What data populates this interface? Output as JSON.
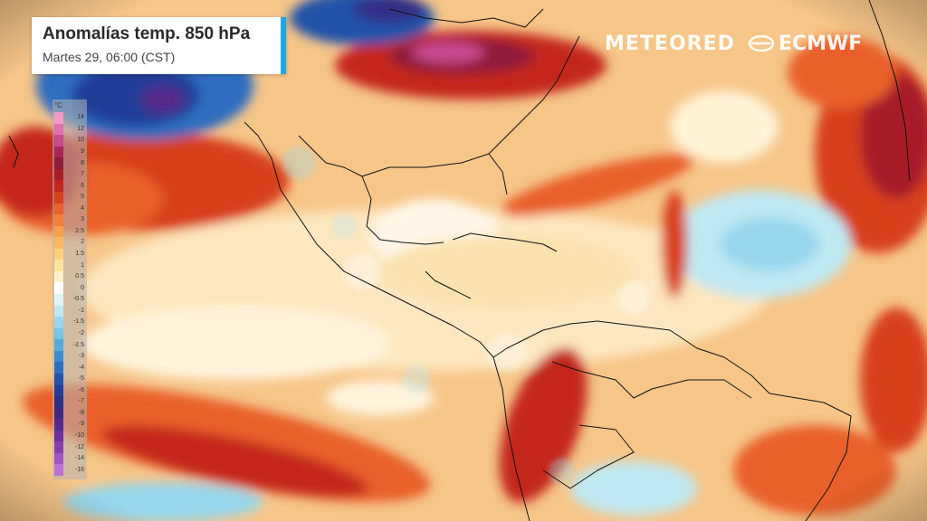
{
  "title": "Anomalías temp. 850 hPa",
  "subtitle": "Martes 29, 06:00 (CST)",
  "brand": {
    "meteored": "METEORED",
    "ecmwf": "ECMWF"
  },
  "legend": {
    "unit": "°C",
    "levels": [
      "14",
      "12",
      "10",
      "9",
      "8",
      "7",
      "6",
      "5",
      "4",
      "3",
      "2.5",
      "2",
      "1.5",
      "1",
      "0.5",
      "0",
      "-0.5",
      "-1",
      "-1.5",
      "-2",
      "-2.5",
      "-3",
      "-4",
      "-5",
      "-6",
      "-7",
      "-8",
      "-9",
      "-10",
      "-12",
      "-14",
      "-16"
    ],
    "colors": [
      "#f29ac9",
      "#e071b3",
      "#c9488e",
      "#a8275c",
      "#8f1c3a",
      "#a81e2b",
      "#c4261f",
      "#d8401f",
      "#e9612b",
      "#f08037",
      "#f5a04b",
      "#f8b861",
      "#fbd07c",
      "#fde39c",
      "#fff2c8",
      "#ffffff",
      "#dff4f7",
      "#bfe8f2",
      "#99d7ec",
      "#78c3e6",
      "#5aa9dc",
      "#3f8ccf",
      "#2f6dbf",
      "#2352a9",
      "#243e97",
      "#302f86",
      "#3d2a80",
      "#552b8a",
      "#6c2f9b",
      "#8740b0",
      "#a255c3",
      "#bb70d3"
    ]
  },
  "map": {
    "features": [
      "coastlines",
      "country-borders",
      "state-borders"
    ],
    "region": "Americas and Atlantic",
    "colors": {
      "warm_strong": "#c4261f",
      "warm": "#f08037",
      "warm_light": "#fbd07c",
      "neutral": "#fff6e6",
      "cool_light": "#99d7ec",
      "cool": "#3f8ccf",
      "cold": "#243e97",
      "border": "#111111"
    }
  }
}
